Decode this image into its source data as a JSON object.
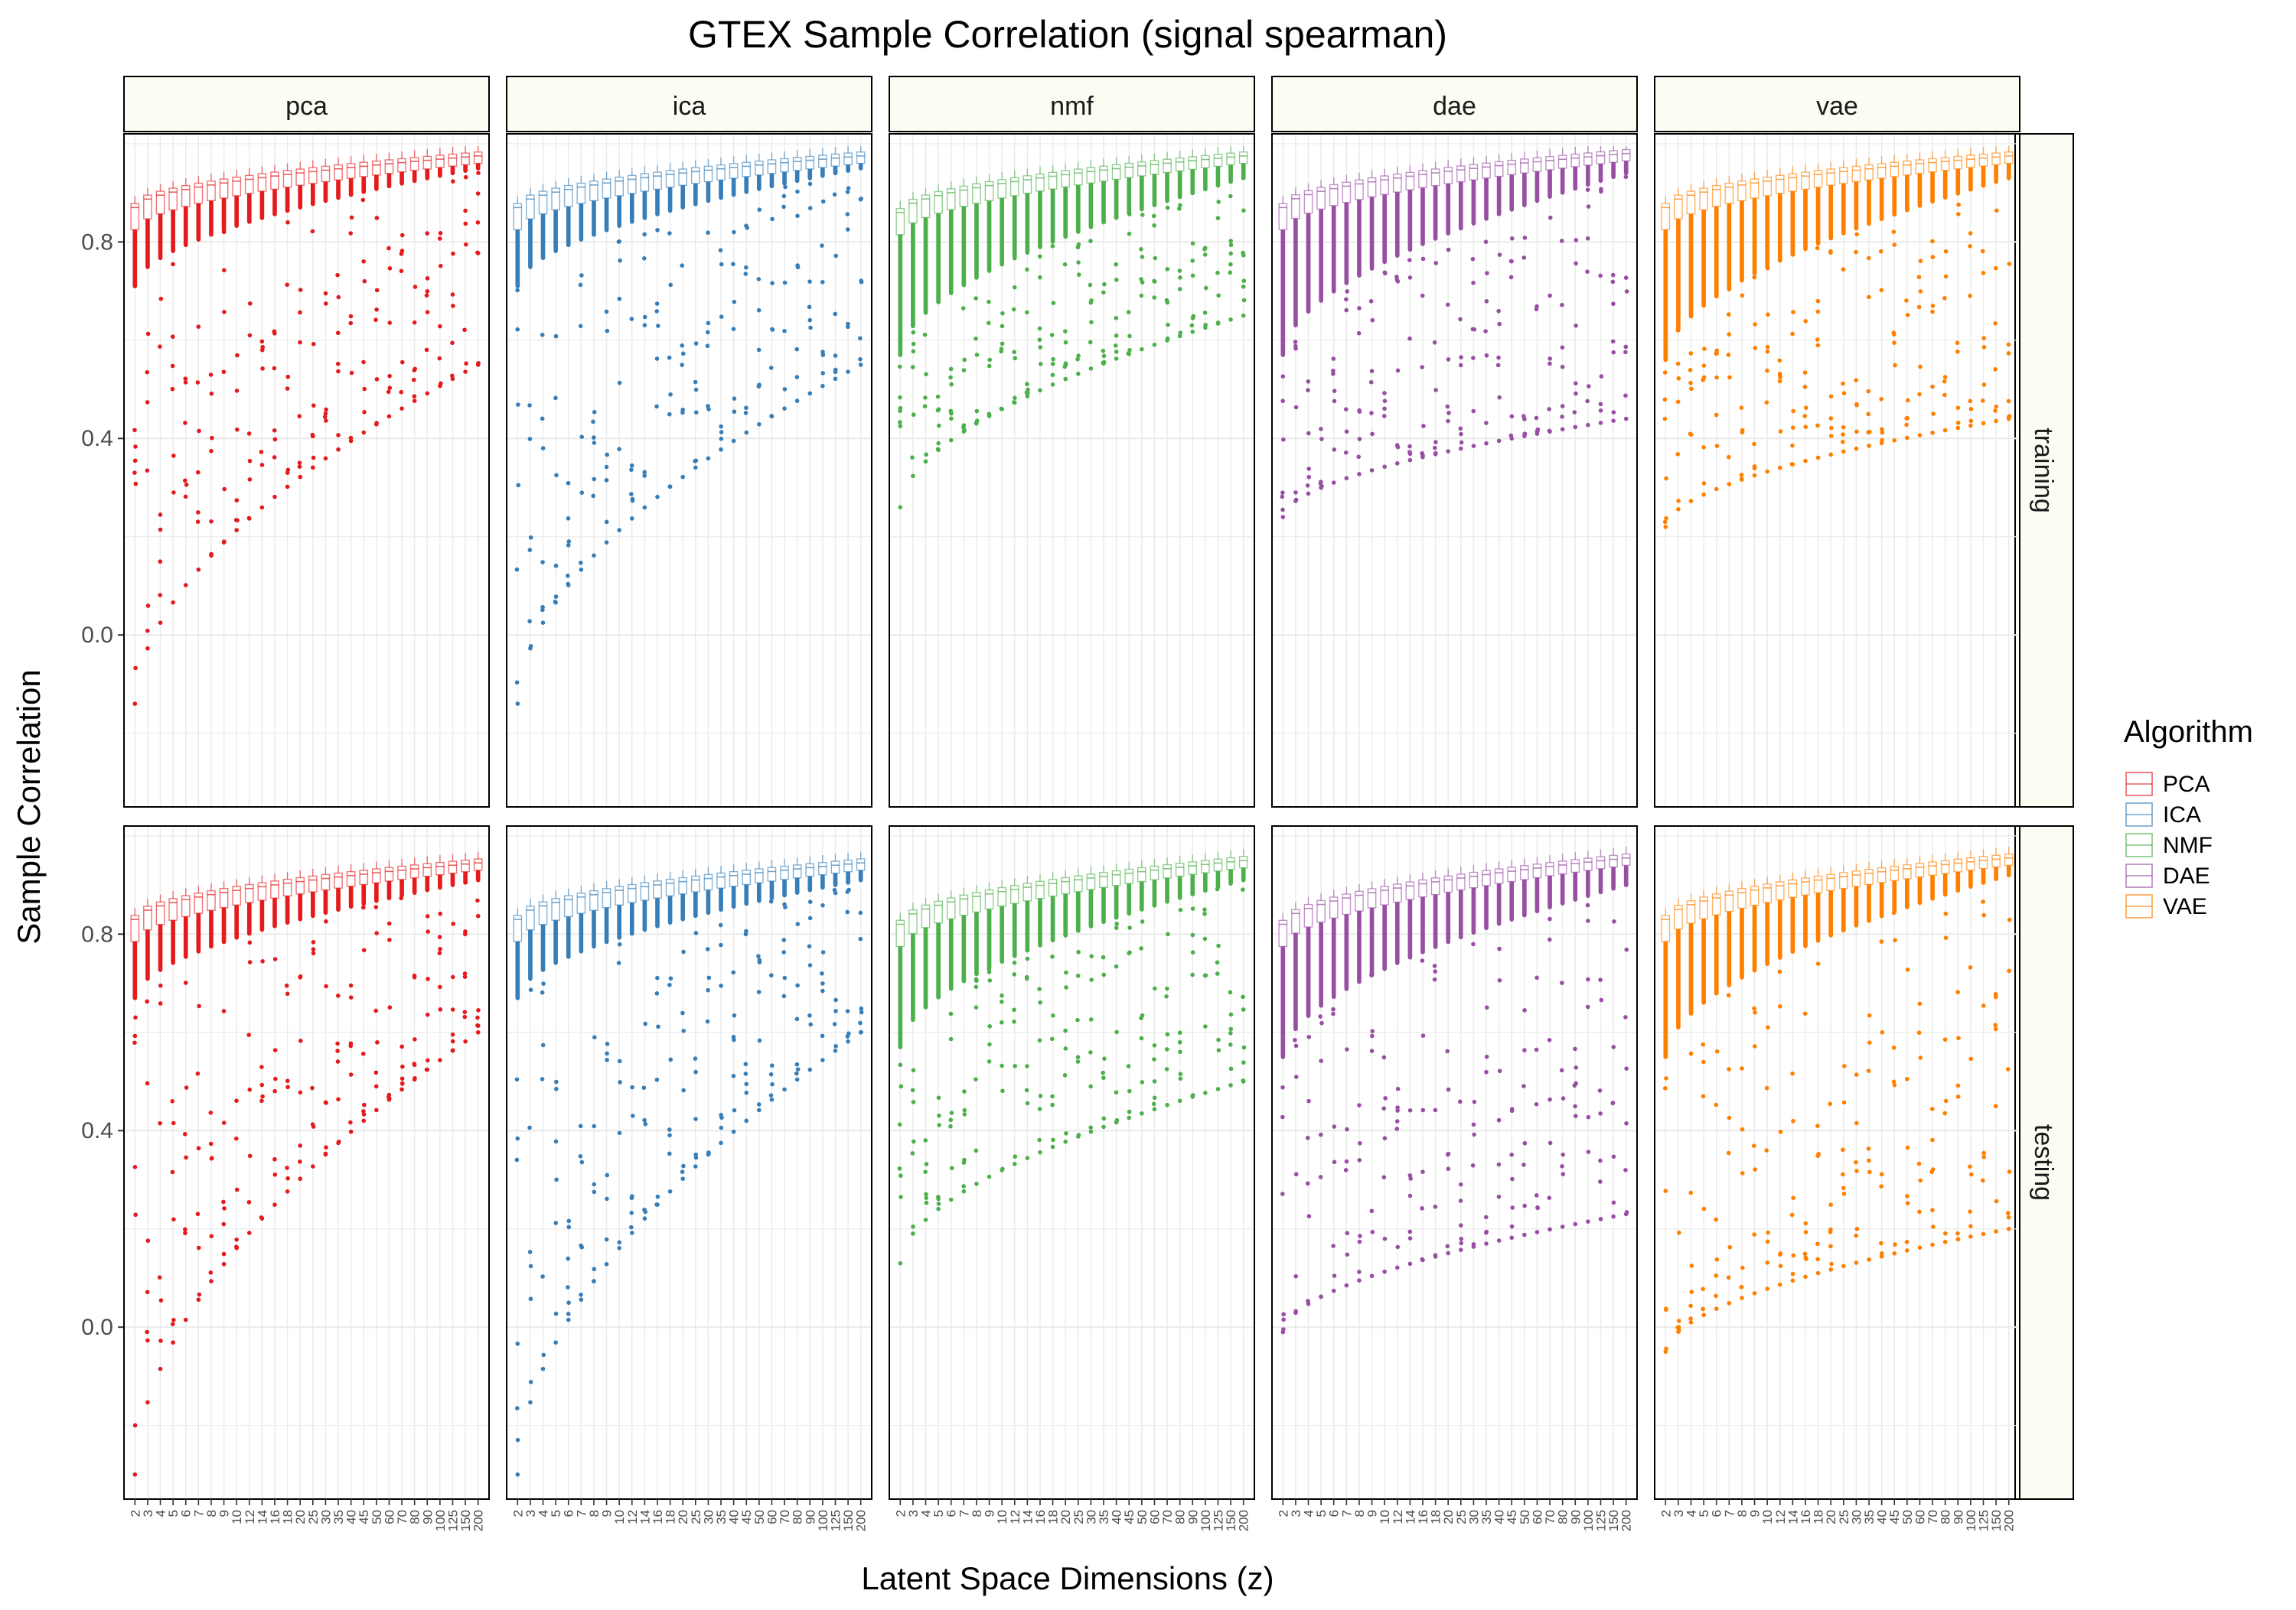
{
  "chart_data": {
    "type": "boxplot",
    "title": "GTEX Sample Correlation (signal spearman)",
    "xlabel": "Latent Space Dimensions (z)",
    "ylabel": "Sample Correlation",
    "ylim": [
      -0.35,
      1.02
    ],
    "y_ticks": [
      0.0,
      0.4,
      0.8
    ],
    "y_tick_labels": [
      "0.0",
      "0.4",
      "0.8"
    ],
    "x_categories": [
      "2",
      "3",
      "4",
      "5",
      "6",
      "7",
      "8",
      "9",
      "10",
      "12",
      "14",
      "16",
      "18",
      "20",
      "25",
      "30",
      "35",
      "40",
      "45",
      "50",
      "60",
      "70",
      "80",
      "90",
      "100",
      "125",
      "150",
      "200"
    ],
    "panels": [
      "pca",
      "ica",
      "nmf",
      "dae",
      "vae"
    ],
    "rows": [
      "training",
      "testing"
    ],
    "legend": {
      "title": "Algorithm",
      "position": "right",
      "items": [
        {
          "label": "PCA",
          "color": "#e41a1c"
        },
        {
          "label": "ICA",
          "color": "#377eb8"
        },
        {
          "label": "NMF",
          "color": "#4daf4a"
        },
        {
          "label": "DAE",
          "color": "#984ea3"
        },
        {
          "label": "VAE",
          "color": "#ff7f00"
        }
      ]
    },
    "colors": {
      "pca": "#e41a1c",
      "ica": "#377eb8",
      "nmf": "#4daf4a",
      "dae": "#984ea3",
      "vae": "#ff7f00",
      "strip_fill": "#fcfdf2",
      "grid": "#ebebeb"
    },
    "series": {
      "training": {
        "pca": {
          "median_start": 0.87,
          "median_end": 0.975,
          "whisker_low_start": 0.71,
          "whisker_low_end": 0.95,
          "outlier_min_start": -0.14,
          "outlier_min_end": 0.55
        },
        "ica": {
          "median_start": 0.87,
          "median_end": 0.975,
          "whisker_low_start": 0.71,
          "whisker_low_end": 0.95,
          "outlier_min_start": -0.14,
          "outlier_min_end": 0.55
        },
        "nmf": {
          "median_start": 0.86,
          "median_end": 0.975,
          "whisker_low_start": 0.57,
          "whisker_low_end": 0.93,
          "outlier_min_start": 0.26,
          "outlier_min_end": 0.65
        },
        "dae": {
          "median_start": 0.87,
          "median_end": 0.98,
          "whisker_low_start": 0.57,
          "whisker_low_end": 0.94,
          "outlier_min_start": 0.24,
          "outlier_min_end": 0.44
        },
        "vae": {
          "median_start": 0.87,
          "median_end": 0.975,
          "whisker_low_start": 0.56,
          "whisker_low_end": 0.93,
          "outlier_min_start": 0.22,
          "outlier_min_end": 0.44
        }
      },
      "testing": {
        "pca": {
          "median_start": 0.83,
          "median_end": 0.945,
          "whisker_low_start": 0.67,
          "whisker_low_end": 0.91,
          "outlier_min_start": -0.3,
          "outlier_min_end": 0.6
        },
        "ica": {
          "median_start": 0.83,
          "median_end": 0.945,
          "whisker_low_start": 0.67,
          "whisker_low_end": 0.91,
          "outlier_min_start": -0.3,
          "outlier_min_end": 0.6
        },
        "nmf": {
          "median_start": 0.82,
          "median_end": 0.95,
          "whisker_low_start": 0.57,
          "whisker_low_end": 0.91,
          "outlier_min_start": 0.13,
          "outlier_min_end": 0.5
        },
        "dae": {
          "median_start": 0.82,
          "median_end": 0.955,
          "whisker_low_start": 0.55,
          "whisker_low_end": 0.9,
          "outlier_min_start": -0.01,
          "outlier_min_end": 0.23
        },
        "vae": {
          "median_start": 0.83,
          "median_end": 0.955,
          "whisker_low_start": 0.55,
          "whisker_low_end": 0.92,
          "outlier_min_start": -0.05,
          "outlier_min_end": 0.2
        }
      }
    }
  }
}
